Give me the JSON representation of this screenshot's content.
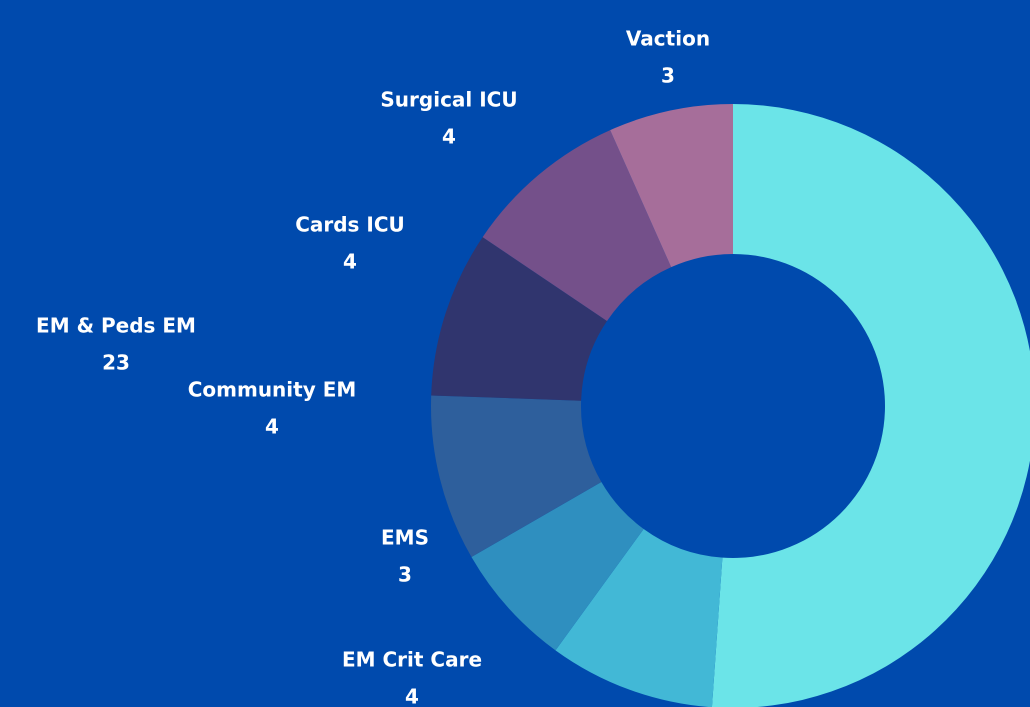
{
  "chart_data": {
    "type": "donut",
    "categories": [
      "EM & Peds EM",
      "EM Crit Care",
      "EMS",
      "Community EM",
      "Cards ICU",
      "Surgical ICU",
      "Vaction"
    ],
    "values": [
      23,
      4,
      3,
      4,
      4,
      4,
      3
    ],
    "colors": [
      "#6be4e8",
      "#42b8d6",
      "#2f8fbf",
      "#2e5f9c",
      "#30356e",
      "#74508a",
      "#a66e9a"
    ],
    "background": "#004aad"
  }
}
